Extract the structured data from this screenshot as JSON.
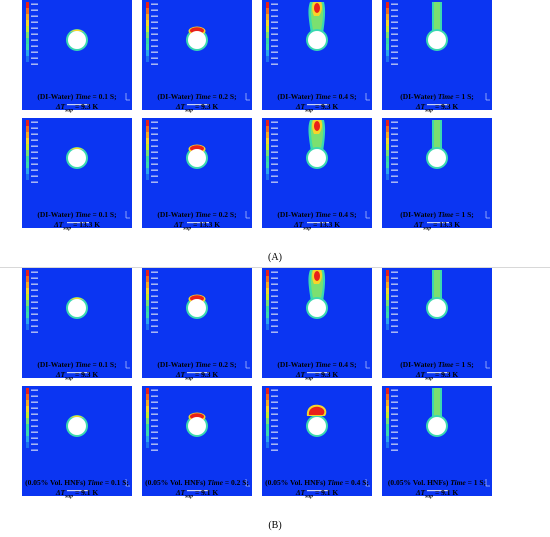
{
  "colors": {
    "background": "#0b35f2",
    "cylinder": "#ffffff",
    "film_outer": "#3bd9b0",
    "vapor_core": "#e8211a",
    "vapor_mid": "#f7d52a",
    "column": "#7be070"
  },
  "section_labels": [
    "(A)",
    "(B)"
  ],
  "group_a": {
    "rows": [
      [
        {
          "prefix": "(DI-Water)",
          "time_label": "Time",
          "time_value": "= 0.1 S;",
          "dt_label": "ΔT",
          "dt_sub": "sup",
          "dt_value": "= 9.3 K",
          "stage": "film"
        },
        {
          "prefix": "(DI-Water)",
          "time_label": "Time",
          "time_value": "= 0.2 S;",
          "dt_label": "ΔT",
          "dt_sub": "sup",
          "dt_value": "= 9.3 K",
          "stage": "cap"
        },
        {
          "prefix": "(DI-Water)",
          "time_label": "Time",
          "time_value": "= 0.4 S;",
          "dt_label": "ΔT",
          "dt_sub": "sup",
          "dt_value": "= 9.3 K",
          "stage": "rising"
        },
        {
          "prefix": "(DI-Water)",
          "time_label": "Time",
          "time_value": "= 1 S;",
          "dt_label": "ΔT",
          "dt_sub": "sup",
          "dt_value": "= 9.3 K",
          "stage": "column"
        }
      ],
      [
        {
          "prefix": "(DI-Water)",
          "time_label": "Time",
          "time_value": "= 0.1 S;",
          "dt_label": "ΔT",
          "dt_sub": "sup",
          "dt_value": "= 13.3 K",
          "stage": "film"
        },
        {
          "prefix": "(DI-Water)",
          "time_label": "Time",
          "time_value": "= 0.2 S;",
          "dt_label": "ΔT",
          "dt_sub": "sup",
          "dt_value": "= 13.3 K",
          "stage": "cap"
        },
        {
          "prefix": "(DI-Water)",
          "time_label": "Time",
          "time_value": "= 0.4 S;",
          "dt_label": "ΔT",
          "dt_sub": "sup",
          "dt_value": "= 13.3 K",
          "stage": "rising"
        },
        {
          "prefix": "(DI-Water)",
          "time_label": "Time",
          "time_value": "= 1 S;",
          "dt_label": "ΔT",
          "dt_sub": "sup",
          "dt_value": "= 13.3 K",
          "stage": "column"
        }
      ]
    ]
  },
  "group_b": {
    "rows": [
      [
        {
          "prefix": "(DI-Water)",
          "time_label": "Time",
          "time_value": "= 0.1 S;",
          "dt_label": "ΔT",
          "dt_sub": "sup",
          "dt_value": "= 9.3 K",
          "stage": "film"
        },
        {
          "prefix": "(DI-Water)",
          "time_label": "Time",
          "time_value": "= 0.2 S;",
          "dt_label": "ΔT",
          "dt_sub": "sup",
          "dt_value": "= 9.3 K",
          "stage": "cap"
        },
        {
          "prefix": "(DI-Water)",
          "time_label": "Time",
          "time_value": "= 0.4 S;",
          "dt_label": "ΔT",
          "dt_sub": "sup",
          "dt_value": "= 9.3 K",
          "stage": "rising"
        },
        {
          "prefix": "(DI-Water)",
          "time_label": "Time",
          "time_value": "= 1 S;",
          "dt_label": "ΔT",
          "dt_sub": "sup",
          "dt_value": "= 9.3 K",
          "stage": "column"
        }
      ],
      [
        {
          "prefix": "(0.05% Vol. HNFs)",
          "time_label": "Time",
          "time_value": "= 0.1 S;",
          "dt_label": "ΔT",
          "dt_sub": "sup",
          "dt_value": "= 9.1 K",
          "stage": "film"
        },
        {
          "prefix": "(0.05% Vol. HNFs)",
          "time_label": "Time",
          "time_value": "= 0.2 S;",
          "dt_label": "ΔT",
          "dt_sub": "sup",
          "dt_value": "= 9.1 K",
          "stage": "cap"
        },
        {
          "prefix": "(0.05% Vol. HNFs)",
          "time_label": "Time",
          "time_value": "= 0.4 S;",
          "dt_label": "ΔT",
          "dt_sub": "sup",
          "dt_value": "= 9.1 K",
          "stage": "bubble"
        },
        {
          "prefix": "(0.05% Vol. HNFs)",
          "time_label": "Time",
          "time_value": "= 1 S;",
          "dt_label": "ΔT",
          "dt_sub": "sup",
          "dt_value": "= 9.1 K",
          "stage": "column"
        }
      ]
    ]
  }
}
